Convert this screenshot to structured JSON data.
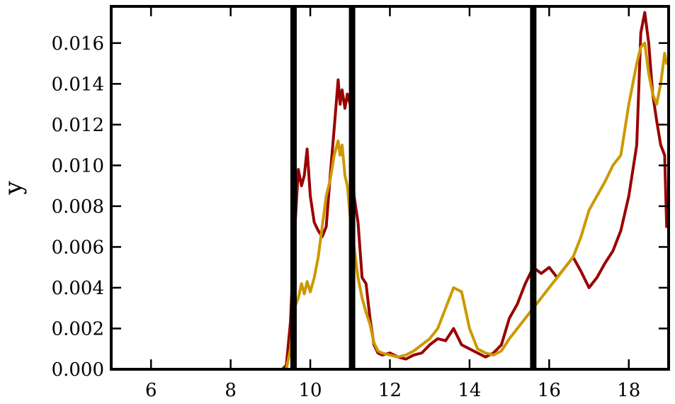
{
  "chart_data": {
    "type": "line",
    "title": "",
    "xlabel": "",
    "ylabel": "y",
    "xlim": [
      5.0,
      19.0
    ],
    "ylim": [
      0.0,
      0.0178
    ],
    "xticks": [
      6,
      8,
      10,
      12,
      14,
      16,
      18
    ],
    "yticks": [
      0.0,
      0.002,
      0.004,
      0.006,
      0.008,
      0.01,
      0.012,
      0.014,
      0.016
    ],
    "xtick_labels": [
      "6",
      "8",
      "10",
      "12",
      "14",
      "16",
      "18"
    ],
    "ytick_labels": [
      "0.000",
      "0.002",
      "0.004",
      "0.006",
      "0.008",
      "0.010",
      "0.012",
      "0.014",
      "0.016"
    ],
    "grid": false,
    "vlines": [
      9.58,
      11.05,
      15.6
    ],
    "series": [
      {
        "color": "#990000",
        "x": [
          9.3,
          9.4,
          9.5,
          9.6,
          9.7,
          9.78,
          9.85,
          9.92,
          10.0,
          10.1,
          10.2,
          10.3,
          10.4,
          10.5,
          10.6,
          10.7,
          10.75,
          10.8,
          10.87,
          10.93,
          11.0,
          11.1,
          11.2,
          11.3,
          11.4,
          11.5,
          11.6,
          11.7,
          11.8,
          12.0,
          12.2,
          12.4,
          12.6,
          12.8,
          13.0,
          13.2,
          13.4,
          13.6,
          13.8,
          14.0,
          14.2,
          14.4,
          14.6,
          14.8,
          15.0,
          15.2,
          15.4,
          15.6,
          15.8,
          16.0,
          16.2,
          16.4,
          16.6,
          16.8,
          17.0,
          17.2,
          17.4,
          17.6,
          17.8,
          18.0,
          18.2,
          18.3,
          18.4,
          18.5,
          18.6,
          18.7,
          18.8,
          18.9,
          18.95
        ],
        "y": [
          0.0,
          0.0002,
          0.0023,
          0.0065,
          0.0098,
          0.009,
          0.0095,
          0.0108,
          0.0085,
          0.0072,
          0.0068,
          0.0065,
          0.007,
          0.0095,
          0.0118,
          0.0142,
          0.013,
          0.0137,
          0.0128,
          0.0135,
          0.013,
          0.0085,
          0.0072,
          0.0045,
          0.0042,
          0.0025,
          0.0012,
          0.0008,
          0.0007,
          0.0008,
          0.0006,
          0.0005,
          0.0007,
          0.0008,
          0.0012,
          0.0015,
          0.0014,
          0.002,
          0.0012,
          0.001,
          0.0008,
          0.0006,
          0.0008,
          0.0012,
          0.0025,
          0.0032,
          0.0042,
          0.005,
          0.0047,
          0.005,
          0.0045,
          0.005,
          0.0055,
          0.0048,
          0.004,
          0.0045,
          0.0052,
          0.0058,
          0.0068,
          0.0085,
          0.011,
          0.0165,
          0.0175,
          0.016,
          0.0135,
          0.0122,
          0.011,
          0.0105,
          0.007
        ]
      },
      {
        "color": "#cc9900",
        "x": [
          9.3,
          9.4,
          9.5,
          9.6,
          9.7,
          9.78,
          9.85,
          9.92,
          10.0,
          10.1,
          10.2,
          10.3,
          10.4,
          10.5,
          10.6,
          10.7,
          10.75,
          10.8,
          10.87,
          10.93,
          11.0,
          11.1,
          11.2,
          11.3,
          11.4,
          11.5,
          11.6,
          11.7,
          11.8,
          12.0,
          12.2,
          12.4,
          12.6,
          12.8,
          13.0,
          13.2,
          13.4,
          13.6,
          13.8,
          14.0,
          14.2,
          14.4,
          14.6,
          14.8,
          15.0,
          15.2,
          15.4,
          15.6,
          15.8,
          16.0,
          16.2,
          16.4,
          16.6,
          16.8,
          17.0,
          17.2,
          17.4,
          17.6,
          17.8,
          18.0,
          18.2,
          18.3,
          18.4,
          18.5,
          18.6,
          18.7,
          18.8,
          18.9,
          18.95
        ],
        "y": [
          0.0,
          0.0,
          0.001,
          0.003,
          0.0035,
          0.0042,
          0.0037,
          0.0043,
          0.0038,
          0.0045,
          0.0055,
          0.007,
          0.0085,
          0.0093,
          0.0105,
          0.0112,
          0.0105,
          0.011,
          0.0095,
          0.009,
          0.0075,
          0.006,
          0.0045,
          0.0035,
          0.0028,
          0.0022,
          0.0013,
          0.0009,
          0.0008,
          0.0007,
          0.0006,
          0.0007,
          0.0009,
          0.0012,
          0.0015,
          0.002,
          0.003,
          0.004,
          0.0038,
          0.002,
          0.001,
          0.0008,
          0.0007,
          0.0009,
          0.0015,
          0.002,
          0.0025,
          0.003,
          0.0035,
          0.004,
          0.0045,
          0.005,
          0.0055,
          0.0065,
          0.0078,
          0.0085,
          0.0092,
          0.01,
          0.0105,
          0.013,
          0.015,
          0.0158,
          0.016,
          0.0145,
          0.0135,
          0.013,
          0.014,
          0.0155,
          0.015
        ]
      }
    ]
  }
}
